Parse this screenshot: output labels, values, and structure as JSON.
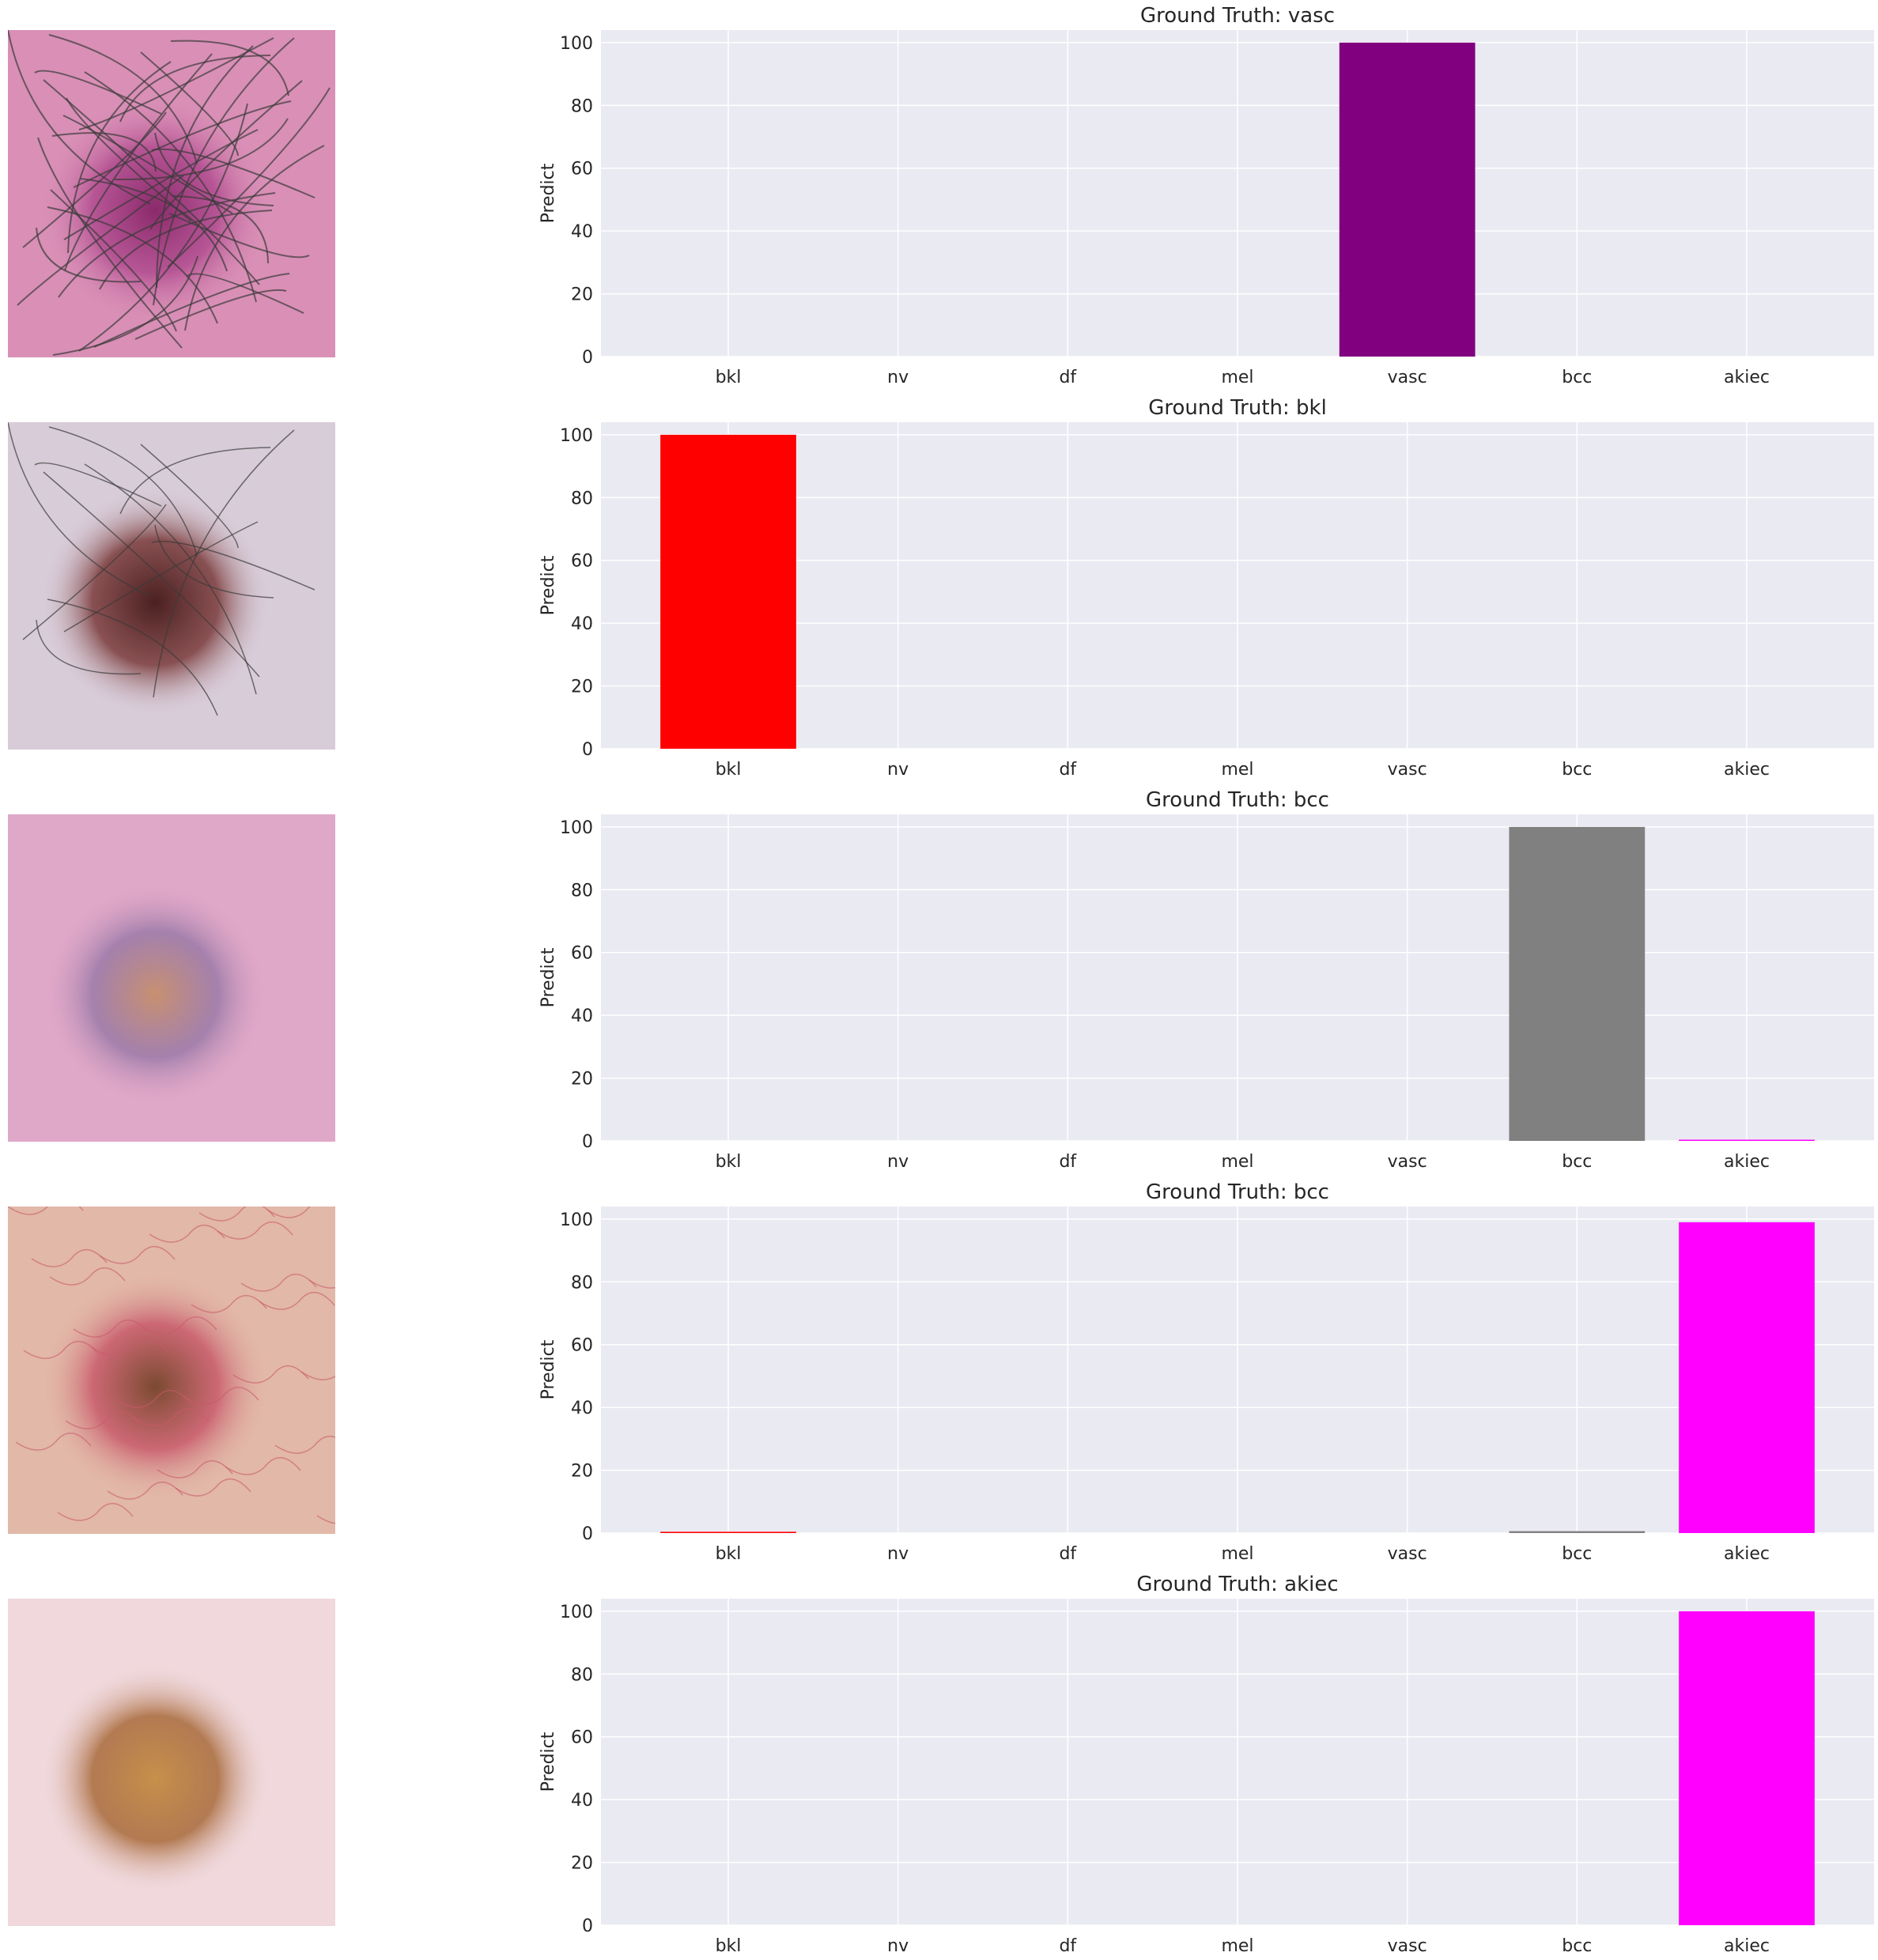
{
  "chart_data": [
    {
      "type": "bar",
      "title": "Ground Truth: vasc",
      "ylabel": "Predict",
      "categories": [
        "bkl",
        "nv",
        "df",
        "mel",
        "vasc",
        "bcc",
        "akiec"
      ],
      "values": [
        0,
        0,
        0,
        0,
        100,
        0,
        0
      ],
      "colors": [
        "#ff0000",
        "#0000ff",
        "#008000",
        "#ffa500",
        "#800080",
        "#808080",
        "#ff00ff"
      ],
      "yticks": [
        "0",
        "20",
        "40",
        "60",
        "80",
        "100"
      ],
      "ylim": [
        0,
        104
      ],
      "grid": true,
      "thumbnail": {
        "name": "lesion-photo-vasc",
        "palette": [
          "#d98fb6",
          "#b04b8f",
          "#8a2a6a",
          "#3b3b3b"
        ]
      }
    },
    {
      "type": "bar",
      "title": "Ground Truth: bkl",
      "ylabel": "Predict",
      "categories": [
        "bkl",
        "nv",
        "df",
        "mel",
        "vasc",
        "bcc",
        "akiec"
      ],
      "values": [
        100,
        0,
        0,
        0,
        0,
        0,
        0
      ],
      "colors": [
        "#ff0000",
        "#0000ff",
        "#008000",
        "#ffa500",
        "#800080",
        "#808080",
        "#ff00ff"
      ],
      "yticks": [
        "0",
        "20",
        "40",
        "60",
        "80",
        "100"
      ],
      "ylim": [
        0,
        104
      ],
      "grid": true,
      "thumbnail": {
        "name": "lesion-photo-bkl",
        "palette": [
          "#d8ccd8",
          "#7a3a3a",
          "#4a2020",
          "#3b3b3b"
        ]
      }
    },
    {
      "type": "bar",
      "title": "Ground Truth: bcc",
      "ylabel": "Predict",
      "categories": [
        "bkl",
        "nv",
        "df",
        "mel",
        "vasc",
        "bcc",
        "akiec"
      ],
      "values": [
        0,
        0,
        0,
        0,
        0,
        100,
        0.2
      ],
      "colors": [
        "#ff0000",
        "#0000ff",
        "#008000",
        "#ffa500",
        "#800080",
        "#808080",
        "#ff00ff"
      ],
      "yticks": [
        "0",
        "20",
        "40",
        "60",
        "80",
        "100"
      ],
      "ylim": [
        0,
        104
      ],
      "grid": true,
      "thumbnail": {
        "name": "lesion-photo-bcc-1",
        "palette": [
          "#e0a8c8",
          "#9a7aa8",
          "#c89070",
          "#e8b8d0"
        ]
      }
    },
    {
      "type": "bar",
      "title": "Ground Truth: bcc",
      "ylabel": "Predict",
      "categories": [
        "bkl",
        "nv",
        "df",
        "mel",
        "vasc",
        "bcc",
        "akiec"
      ],
      "values": [
        0.4,
        0,
        0,
        0,
        0,
        0.6,
        99
      ],
      "colors": [
        "#ff0000",
        "#0000ff",
        "#008000",
        "#ffa500",
        "#800080",
        "#808080",
        "#ff00ff"
      ],
      "yticks": [
        "0",
        "20",
        "40",
        "60",
        "80",
        "100"
      ],
      "ylim": [
        0,
        104
      ],
      "grid": true,
      "thumbnail": {
        "name": "lesion-photo-bcc-2",
        "palette": [
          "#e2b8a8",
          "#c85a6a",
          "#7a4a30",
          "#e8d0b0"
        ]
      }
    },
    {
      "type": "bar",
      "title": "Ground Truth: akiec",
      "ylabel": "Predict",
      "categories": [
        "bkl",
        "nv",
        "df",
        "mel",
        "vasc",
        "bcc",
        "akiec"
      ],
      "values": [
        0,
        0,
        0,
        0,
        0,
        0,
        100
      ],
      "colors": [
        "#ff0000",
        "#0000ff",
        "#008000",
        "#ffa500",
        "#800080",
        "#808080",
        "#ff00ff"
      ],
      "yticks": [
        "0",
        "20",
        "40",
        "60",
        "80",
        "100"
      ],
      "ylim": [
        0,
        104
      ],
      "grid": true,
      "thumbnail": {
        "name": "lesion-photo-akiec",
        "palette": [
          "#f0d8dc",
          "#a86a3a",
          "#c8904a",
          "#e8c8c8"
        ]
      }
    }
  ]
}
